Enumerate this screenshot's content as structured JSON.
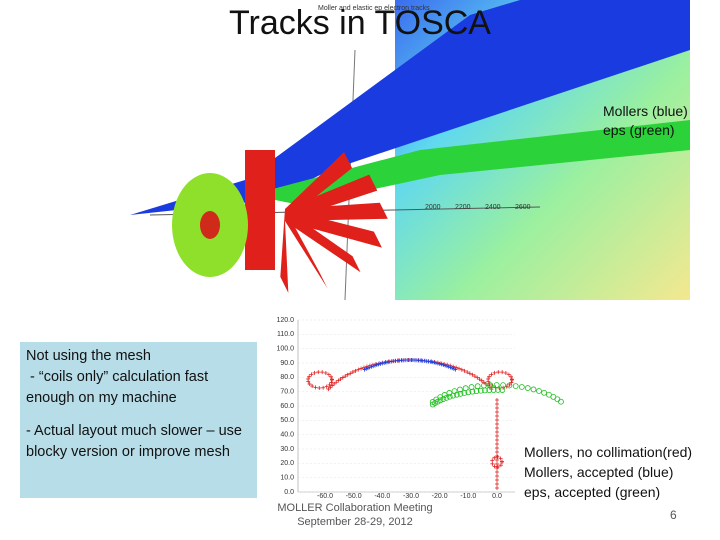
{
  "title": "Tracks in TOSCA",
  "top_figure": {
    "caption": "Moller and elastic ep electron tracks",
    "axis_labels": [
      "2000",
      "2200",
      "2400",
      "2600"
    ],
    "legend": [
      "Mollers (blue)",
      "eps (green)"
    ]
  },
  "notes": [
    "Not using the mesh",
    " - “coils only” calculation fast enough on my machine",
    "- Actual layout much slower – use blocky version or improve mesh"
  ],
  "bottom_figure": {
    "yticks": [
      "120.0",
      "110.0",
      "100.0",
      "90.0",
      "80.0",
      "70.0",
      "60.0",
      "50.0",
      "40.0",
      "30.0",
      "20.0",
      "10.0",
      "0.0"
    ],
    "xticks": [
      "-60.0",
      "-50.0",
      "-40.0",
      "-30.0",
      "-20.0",
      "-10.0",
      "0.0"
    ],
    "legend": [
      "Mollers, no collimation(red)",
      "Mollers, accepted (blue)",
      "eps, accepted (green)"
    ]
  },
  "footer": {
    "meeting": "MOLLER Collaboration Meeting",
    "date": "September 28-29, 2012",
    "page": "6"
  }
}
